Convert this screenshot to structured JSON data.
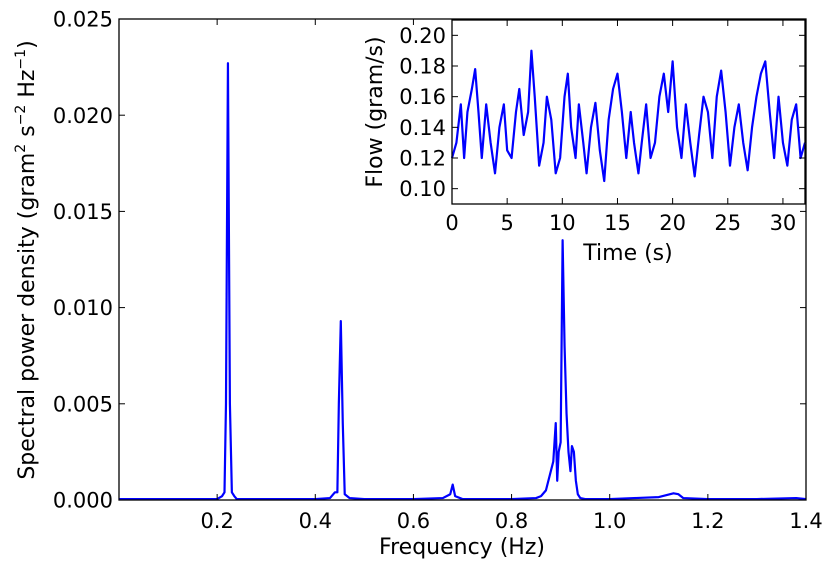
{
  "chart_data": [
    {
      "type": "line",
      "xlabel": "Frequency (Hz)",
      "ylabel_parts": {
        "main": "Spectral power density (gram",
        "sup1": "2",
        "mid1": " s",
        "sup2": "−2",
        "mid2": " Hz",
        "sup3": "−1",
        "end": ")"
      },
      "xlim": [
        0.0,
        1.4
      ],
      "ylim": [
        0.0,
        0.025
      ],
      "xticks": [
        0.2,
        0.4,
        0.6,
        0.8,
        1.0,
        1.2,
        1.4
      ],
      "xtick_labels": [
        "0.2",
        "0.4",
        "0.6",
        "0.8",
        "1.0",
        "1.2",
        "1.4"
      ],
      "yticks": [
        0.0,
        0.005,
        0.01,
        0.015,
        0.02,
        0.025
      ],
      "ytick_labels": [
        "0.000",
        "0.005",
        "0.010",
        "0.015",
        "0.020",
        "0.025"
      ],
      "grid": false,
      "line_color": "#0000ff",
      "series": [
        {
          "x": [
            0.0,
            0.1,
            0.2,
            0.21,
            0.215,
            0.218,
            0.222,
            0.226,
            0.23,
            0.235,
            0.24,
            0.3,
            0.4,
            0.43,
            0.44,
            0.445,
            0.448,
            0.452,
            0.456,
            0.46,
            0.47,
            0.5,
            0.6,
            0.66,
            0.675,
            0.68,
            0.685,
            0.7,
            0.8,
            0.85,
            0.86,
            0.87,
            0.88,
            0.885,
            0.89,
            0.893,
            0.896,
            0.9,
            0.904,
            0.908,
            0.912,
            0.916,
            0.92,
            0.923,
            0.927,
            0.931,
            0.935,
            0.94,
            0.95,
            1.0,
            1.05,
            1.1,
            1.13,
            1.14,
            1.15,
            1.2,
            1.3,
            1.38,
            1.4
          ],
          "y": [
            5e-05,
            5e-05,
            5e-05,
            0.0002,
            0.0004,
            0.005,
            0.0227,
            0.005,
            0.0004,
            0.0002,
            5e-05,
            5e-05,
            5e-05,
            0.0001,
            0.0004,
            0.0004,
            0.005,
            0.0093,
            0.004,
            0.0003,
            0.0001,
            5e-05,
            5e-05,
            0.0001,
            0.0003,
            0.0008,
            0.0002,
            5e-05,
            5e-05,
            0.0001,
            0.0002,
            0.0005,
            0.0015,
            0.002,
            0.004,
            0.001,
            0.0025,
            0.003,
            0.0135,
            0.008,
            0.0045,
            0.0025,
            0.0015,
            0.0028,
            0.0025,
            0.001,
            0.0003,
            0.0001,
            5e-05,
            5e-05,
            0.0001,
            0.00015,
            0.00035,
            0.0003,
            0.0001,
            5e-05,
            5e-05,
            0.0001,
            5e-05
          ]
        }
      ]
    },
    {
      "type": "line",
      "xlabel": "Time (s)",
      "ylabel": "Flow (gram/s)",
      "xlim": [
        0,
        32
      ],
      "ylim": [
        0.09,
        0.21
      ],
      "xticks": [
        0,
        5,
        10,
        15,
        20,
        25,
        30
      ],
      "xtick_labels": [
        "0",
        "5",
        "10",
        "15",
        "20",
        "25",
        "30"
      ],
      "yticks": [
        0.1,
        0.12,
        0.14,
        0.16,
        0.18,
        0.2
      ],
      "ytick_labels": [
        "0.10",
        "0.12",
        "0.14",
        "0.16",
        "0.18",
        "0.20"
      ],
      "grid": false,
      "line_color": "#0000ff",
      "series": [
        {
          "x": [
            0.0,
            0.4,
            0.8,
            1.1,
            1.4,
            1.8,
            2.1,
            2.4,
            2.7,
            3.1,
            3.5,
            3.9,
            4.3,
            4.7,
            5.0,
            5.4,
            5.8,
            6.1,
            6.5,
            6.9,
            7.2,
            7.5,
            7.9,
            8.3,
            8.6,
            9.0,
            9.4,
            9.8,
            10.2,
            10.5,
            10.8,
            11.2,
            11.5,
            11.9,
            12.2,
            12.6,
            13.0,
            13.4,
            13.8,
            14.2,
            14.6,
            15.0,
            15.4,
            15.8,
            16.2,
            16.5,
            16.9,
            17.2,
            17.6,
            18.0,
            18.4,
            18.8,
            19.2,
            19.6,
            20.0,
            20.4,
            20.8,
            21.2,
            21.6,
            22.0,
            22.4,
            22.8,
            23.2,
            23.6,
            24.0,
            24.4,
            24.8,
            25.2,
            25.6,
            26.0,
            26.4,
            26.8,
            27.2,
            27.6,
            28.0,
            28.4,
            28.8,
            29.2,
            29.6,
            30.0,
            30.4,
            30.8,
            31.2,
            31.6,
            32.0
          ],
          "y": [
            0.12,
            0.13,
            0.155,
            0.12,
            0.15,
            0.165,
            0.178,
            0.15,
            0.12,
            0.155,
            0.13,
            0.11,
            0.14,
            0.155,
            0.125,
            0.12,
            0.15,
            0.165,
            0.135,
            0.15,
            0.19,
            0.16,
            0.115,
            0.13,
            0.16,
            0.145,
            0.11,
            0.12,
            0.16,
            0.175,
            0.14,
            0.12,
            0.155,
            0.13,
            0.11,
            0.14,
            0.156,
            0.125,
            0.105,
            0.145,
            0.165,
            0.175,
            0.15,
            0.12,
            0.15,
            0.13,
            0.11,
            0.13,
            0.155,
            0.12,
            0.13,
            0.16,
            0.175,
            0.15,
            0.183,
            0.14,
            0.12,
            0.155,
            0.13,
            0.108,
            0.135,
            0.16,
            0.15,
            0.12,
            0.16,
            0.177,
            0.15,
            0.115,
            0.14,
            0.155,
            0.13,
            0.112,
            0.14,
            0.16,
            0.175,
            0.183,
            0.15,
            0.12,
            0.16,
            0.13,
            0.115,
            0.145,
            0.155,
            0.12,
            0.13
          ]
        }
      ]
    }
  ]
}
